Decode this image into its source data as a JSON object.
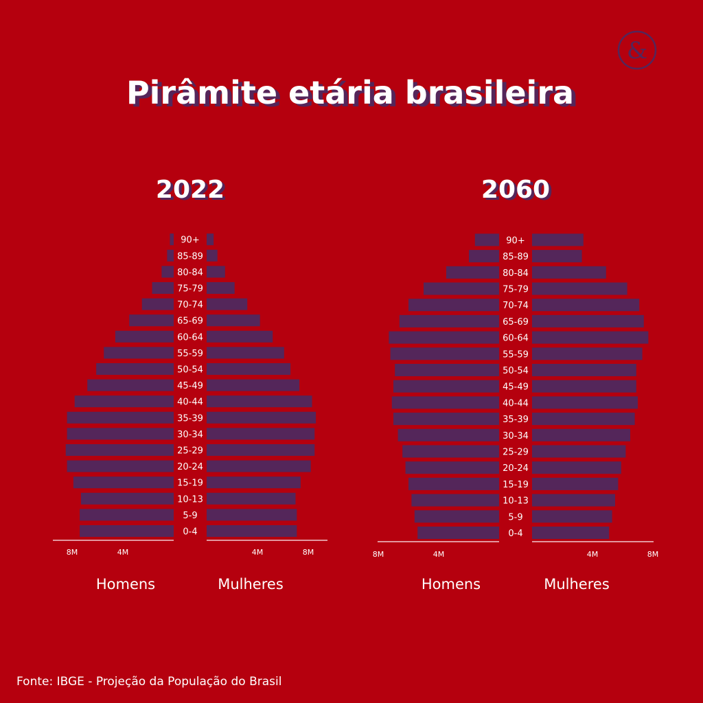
{
  "title": "Pirâmite etária brasileira",
  "source": "Fonte: IBGE - Projeção da População do Brasil",
  "logo_icon": "ampersand-logo-icon",
  "colors": {
    "background": "#b5000e",
    "bar": "#54265a",
    "text": "#ffffff",
    "title_shadow": "#54265a",
    "axis": "#f2c9cf"
  },
  "chart_data": [
    {
      "type": "bar",
      "title": "2022",
      "orientation": "horizontal-population-pyramid",
      "categories": [
        "0-4",
        "5-9",
        "10-13",
        "15-19",
        "20-24",
        "25-29",
        "30-34",
        "35-39",
        "40-44",
        "45-49",
        "50-54",
        "55-59",
        "60-64",
        "65-69",
        "70-74",
        "75-79",
        "80-84",
        "85-89",
        "90+"
      ],
      "series": [
        {
          "name": "Homens",
          "side": "left",
          "values": [
            7.4,
            7.4,
            7.3,
            7.9,
            8.4,
            8.5,
            8.4,
            8.4,
            7.8,
            6.8,
            6.1,
            5.5,
            4.6,
            3.5,
            2.5,
            1.7,
            0.95,
            0.52,
            0.3
          ]
        },
        {
          "name": "Mulheres",
          "side": "right",
          "values": [
            7.1,
            7.1,
            7.0,
            7.4,
            8.2,
            8.5,
            8.5,
            8.6,
            8.3,
            7.3,
            6.6,
            6.1,
            5.2,
            4.2,
            3.2,
            2.2,
            1.45,
            0.85,
            0.55
          ]
        }
      ],
      "xlim": [
        0,
        10
      ],
      "tick_labels_left": [
        "8M",
        "4M"
      ],
      "tick_labels_right": [
        "4M",
        "8M"
      ],
      "tick_values": [
        8,
        4
      ],
      "xlabel_left": "Homens",
      "xlabel_right": "Mulheres"
    },
    {
      "type": "bar",
      "title": "2060",
      "orientation": "horizontal-population-pyramid",
      "categories": [
        "0-4",
        "5-9",
        "10-13",
        "15-19",
        "20-24",
        "25-29",
        "30-34",
        "35-39",
        "40-44",
        "45-49",
        "50-54",
        "55-59",
        "60-64",
        "65-69",
        "70-74",
        "75-79",
        "80-84",
        "85-89",
        "90+"
      ],
      "series": [
        {
          "name": "Homens",
          "side": "left",
          "values": [
            5.4,
            5.6,
            5.8,
            6.0,
            6.2,
            6.4,
            6.7,
            7.0,
            7.1,
            7.0,
            6.9,
            7.2,
            7.3,
            6.6,
            6.0,
            5.0,
            3.5,
            2.0,
            1.6
          ]
        },
        {
          "name": "Mulheres",
          "side": "right",
          "values": [
            5.1,
            5.3,
            5.5,
            5.7,
            5.9,
            6.2,
            6.5,
            6.8,
            7.0,
            6.9,
            6.9,
            7.3,
            7.7,
            7.4,
            7.1,
            6.3,
            4.9,
            3.3,
            3.4
          ]
        }
      ],
      "xlim": [
        0,
        10
      ],
      "tick_labels_left": [
        "8M",
        "4M"
      ],
      "tick_labels_right": [
        "4M",
        "8M"
      ],
      "tick_values": [
        8,
        4
      ],
      "xlabel_left": "Homens",
      "xlabel_right": "Mulheres"
    }
  ]
}
